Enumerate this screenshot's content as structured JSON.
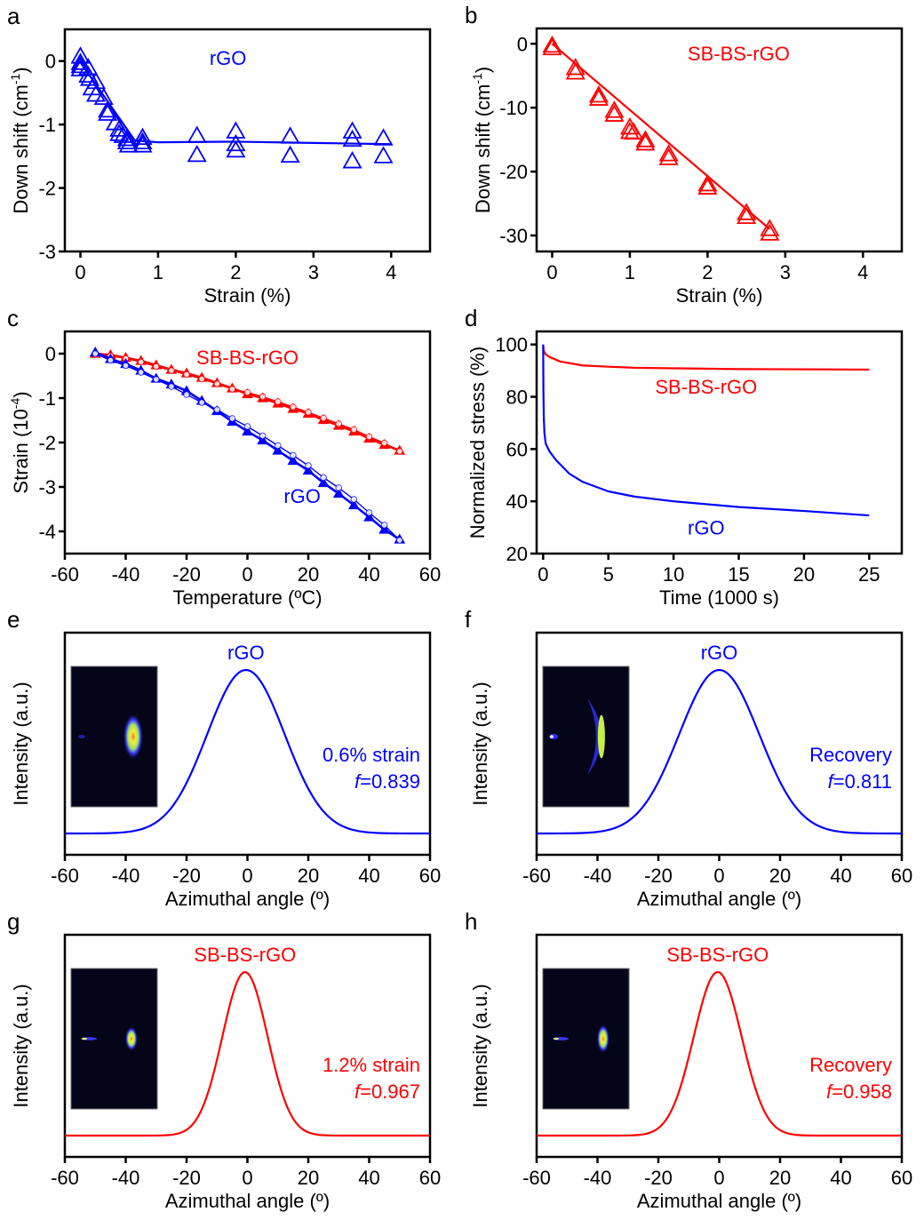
{
  "colors": {
    "rgo": "#0000ff",
    "sbbs": "#ff0000",
    "inset_bg": "#05051a"
  },
  "chart_data": [
    {
      "id": "a",
      "type": "scatter",
      "panel_letter": "a",
      "title": "",
      "xlabel": "Strain (%)",
      "ylabel": "Down shift (cm⁻¹)",
      "ylabel_parts": {
        "main": "Down shift (cm",
        "sup": "-1",
        "end": ")"
      },
      "xlim": [
        -0.2,
        4.5
      ],
      "ylim": [
        -3,
        0.5
      ],
      "xticks": [
        0,
        1,
        2,
        3,
        4
      ],
      "yticks": [
        0,
        -1,
        -2,
        -3
      ],
      "grid": false,
      "annotations": [
        {
          "text": "rGO",
          "color": "#0000ff",
          "at": [
            1.9,
            0.05
          ]
        }
      ],
      "series": [
        {
          "name": "rGO",
          "color": "#0000ff",
          "marker": "open-triangle",
          "x": [
            0,
            0,
            0,
            0,
            0.1,
            0.1,
            0.12,
            0.15,
            0.2,
            0.2,
            0.3,
            0.35,
            0.35,
            0.45,
            0.5,
            0.5,
            0.55,
            0.6,
            0.6,
            0.62,
            0.8,
            0.8,
            0.8,
            1.5,
            1.5,
            2.0,
            2.0,
            2.0,
            2.7,
            2.7,
            3.5,
            3.5,
            3.5,
            3.9,
            3.9
          ],
          "y": [
            0.1,
            0.0,
            -0.05,
            -0.1,
            -0.08,
            -0.2,
            -0.25,
            -0.4,
            -0.3,
            -0.5,
            -0.55,
            -0.75,
            -0.8,
            -0.95,
            -1.05,
            -1.12,
            -1.15,
            -1.2,
            -1.25,
            -1.3,
            -1.18,
            -1.25,
            -1.3,
            -1.15,
            -1.45,
            -1.08,
            -1.28,
            -1.38,
            -1.16,
            -1.46,
            -1.08,
            -1.21,
            -1.55,
            -1.19,
            -1.47
          ]
        },
        {
          "name": "rGO fit",
          "color": "#0000ff",
          "type": "line",
          "x": [
            0,
            0.7,
            1.0,
            2.0,
            3.0,
            4.0
          ],
          "y": [
            -0.02,
            -1.25,
            -1.28,
            -1.27,
            -1.29,
            -1.31
          ]
        }
      ]
    },
    {
      "id": "b",
      "type": "scatter",
      "panel_letter": "b",
      "title": "",
      "xlabel": "Strain (%)",
      "ylabel": "Down shift (cm⁻¹)",
      "ylabel_parts": {
        "main": "Down shift (cm",
        "sup": "-1",
        "end": ")"
      },
      "xlim": [
        -0.2,
        4.5
      ],
      "ylim": [
        -32.5,
        2.4
      ],
      "xticks": [
        0,
        1,
        2,
        3,
        4
      ],
      "yticks": [
        0,
        -10,
        -20,
        -30
      ],
      "grid": false,
      "annotations": [
        {
          "text": "SB-BS-rGO",
          "color": "#ff0000",
          "at": [
            2.4,
            -1.5
          ]
        }
      ],
      "series": [
        {
          "name": "SB-BS-rGO",
          "color": "#ff0000",
          "marker": "open-triangle",
          "x": [
            0,
            0,
            0.3,
            0.3,
            0.6,
            0.6,
            0.8,
            0.8,
            1.0,
            1.0,
            1.05,
            1.2,
            1.2,
            1.5,
            1.5,
            2.0,
            2.0,
            2.5,
            2.5,
            2.8,
            2.8
          ],
          "y": [
            0,
            -0.4,
            -3.5,
            -4.2,
            -7.8,
            -8.3,
            -10.2,
            -10.8,
            -12.8,
            -13.5,
            -13.6,
            -14.8,
            -15.3,
            -17.0,
            -17.6,
            -21.7,
            -22.2,
            -26.2,
            -26.8,
            -28.7,
            -29.4
          ]
        },
        {
          "name": "SB-BS-rGO fit",
          "color": "#ff0000",
          "type": "line",
          "x": [
            0,
            2.8
          ],
          "y": [
            0,
            -29.0
          ]
        }
      ]
    },
    {
      "id": "c",
      "type": "line",
      "panel_letter": "c",
      "title": "",
      "xlabel": "Temperature (ºC)",
      "ylabel": "Strain (10⁻⁴)",
      "ylabel_parts": {
        "main": "Strain (10",
        "sup": "-4",
        "end": ")"
      },
      "xlim": [
        -60,
        60
      ],
      "ylim": [
        -4.5,
        0.5
      ],
      "xticks": [
        -60,
        -40,
        -20,
        0,
        20,
        40,
        60
      ],
      "yticks": [
        0,
        -1,
        -2,
        -3,
        -4
      ],
      "grid": false,
      "annotations": [
        {
          "text": "SB-BS-rGO",
          "color": "#ff0000",
          "at": [
            0,
            -0.08
          ]
        },
        {
          "text": "rGO",
          "color": "#0000ff",
          "at": [
            18,
            -3.2
          ]
        }
      ],
      "x": [
        -50,
        -45,
        -40,
        -35,
        -30,
        -25,
        -20,
        -15,
        -10,
        -5,
        0,
        5,
        10,
        15,
        20,
        25,
        30,
        35,
        40,
        45,
        50
      ],
      "series": [
        {
          "name": "SB-BS-rGO (filled)",
          "color": "#ff0000",
          "marker": "filled-triangle",
          "values": [
            0,
            -0.03,
            -0.09,
            -0.16,
            -0.26,
            -0.36,
            -0.44,
            -0.54,
            -0.66,
            -0.78,
            -0.91,
            -1.0,
            -1.12,
            -1.24,
            -1.35,
            -1.49,
            -1.62,
            -1.75,
            -1.91,
            -2.05,
            -2.18
          ]
        },
        {
          "name": "SB-BS-rGO (open)",
          "color": "#ff0000",
          "marker": "open-circle",
          "values": [
            -0.02,
            -0.05,
            -0.11,
            -0.19,
            -0.29,
            -0.38,
            -0.47,
            -0.57,
            -0.68,
            -0.8,
            -0.87,
            -0.97,
            -1.08,
            -1.2,
            -1.32,
            -1.45,
            -1.58,
            -1.71,
            -1.87,
            -2.01,
            -2.2
          ]
        },
        {
          "name": "rGO (filled)",
          "color": "#0000ff",
          "marker": "filled-triangle",
          "values": [
            0.03,
            -0.12,
            -0.23,
            -0.38,
            -0.56,
            -0.69,
            -0.84,
            -1.06,
            -1.29,
            -1.53,
            -1.75,
            -1.95,
            -2.18,
            -2.41,
            -2.63,
            -2.91,
            -3.15,
            -3.41,
            -3.68,
            -3.96,
            -4.18
          ]
        },
        {
          "name": "rGO (open)",
          "color": "#0000ff",
          "marker": "open-circle",
          "values": [
            0,
            -0.15,
            -0.27,
            -0.42,
            -0.58,
            -0.74,
            -0.92,
            -1.1,
            -1.26,
            -1.46,
            -1.64,
            -1.85,
            -2.07,
            -2.29,
            -2.52,
            -2.79,
            -3.02,
            -3.28,
            -3.58,
            -3.86,
            -4.2
          ]
        }
      ]
    },
    {
      "id": "d",
      "type": "line",
      "panel_letter": "d",
      "title": "",
      "xlabel": "Time (1000 s)",
      "ylabel": "Normalized stress (%)",
      "xlim": [
        -0.5,
        27.5
      ],
      "ylim": [
        20,
        105
      ],
      "xticks": [
        0,
        5,
        10,
        15,
        20,
        25
      ],
      "yticks": [
        20,
        40,
        60,
        80,
        100
      ],
      "grid": false,
      "annotations": [
        {
          "text": "SB-BS-rGO",
          "color": "#ff0000",
          "at": [
            12.5,
            84
          ]
        },
        {
          "text": "rGO",
          "color": "#0000ff",
          "at": [
            12.5,
            30
          ]
        }
      ],
      "series": [
        {
          "name": "SB-BS-rGO",
          "color": "#ff0000",
          "x": [
            0,
            0.05,
            0.2,
            0.5,
            1.3,
            3,
            5,
            7,
            10,
            15,
            20,
            25
          ],
          "y": [
            100,
            97.5,
            96.2,
            95.2,
            93.5,
            92.0,
            91.5,
            91.1,
            90.9,
            90.6,
            90.5,
            90.4
          ]
        },
        {
          "name": "rGO",
          "color": "#0000ff",
          "x": [
            0,
            0.02,
            0.05,
            0.1,
            0.2,
            0.5,
            1,
            2,
            3,
            5,
            7,
            10,
            15,
            20,
            25
          ],
          "y": [
            100,
            82,
            72,
            66,
            62,
            59,
            55.7,
            50.6,
            47.5,
            43.8,
            41.8,
            40.0,
            37.8,
            36.3,
            34.6
          ]
        }
      ]
    },
    {
      "id": "e",
      "type": "line",
      "panel_letter": "e",
      "xlabel": "Azimuthal angle (º)",
      "ylabel": "Intensity (a.u.)",
      "xlim": [
        -60,
        60
      ],
      "xticks": [
        -60,
        -40,
        -20,
        0,
        20,
        40,
        60
      ],
      "material": "rGO",
      "color": "#0000ff",
      "annotations": {
        "title": "rGO",
        "condition": "0.6% strain",
        "f_label": "f",
        "f_value": "=0.839"
      },
      "peak": {
        "center": -0.5,
        "fwhm": 30
      },
      "inset": {
        "arc": "wide",
        "arc_x": 0.72,
        "arc_height": 0.32,
        "beam_stop": "small"
      }
    },
    {
      "id": "f",
      "type": "line",
      "panel_letter": "f",
      "xlabel": "Azimuthal angle (º)",
      "ylabel": "Intensity (a.u.)",
      "xlim": [
        -60,
        60
      ],
      "xticks": [
        -60,
        -40,
        -20,
        0,
        20,
        40,
        60
      ],
      "material": "rGO",
      "color": "#0000ff",
      "annotations": {
        "title": "rGO",
        "condition": "Recovery",
        "f_label": "f",
        "f_value": "=0.811"
      },
      "peak": {
        "center": 0,
        "fwhm": 31
      },
      "inset": {
        "arc": "crescent",
        "arc_x": 0.7,
        "arc_height": 0.55,
        "beam_stop": "bright"
      }
    },
    {
      "id": "g",
      "type": "line",
      "panel_letter": "g",
      "xlabel": "Azimuthal angle (º)",
      "ylabel": "Intensity (a.u.)",
      "xlim": [
        -60,
        60
      ],
      "xticks": [
        -60,
        -40,
        -20,
        0,
        20,
        40,
        60
      ],
      "material": "SB-BS-rGO",
      "color": "#ff0000",
      "annotations": {
        "title": "SB-BS-rGO",
        "condition": "1.2% strain",
        "f_label": "f",
        "f_value": "=0.967"
      },
      "peak": {
        "center": -0.8,
        "fwhm": 17.5
      },
      "inset": {
        "arc": "spot",
        "arc_x": 0.7,
        "arc_height": 0.17,
        "beam_stop": "streak"
      }
    },
    {
      "id": "h",
      "type": "line",
      "panel_letter": "h",
      "xlabel": "Azimuthal angle (º)",
      "ylabel": "Intensity (a.u.)",
      "xlim": [
        -60,
        60
      ],
      "xticks": [
        -60,
        -40,
        -20,
        0,
        20,
        40,
        60
      ],
      "material": "SB-BS-rGO",
      "color": "#ff0000",
      "annotations": {
        "title": "SB-BS-rGO",
        "condition": "Recovery",
        "f_label": "f",
        "f_value": "=0.958"
      },
      "peak": {
        "center": -0.5,
        "fwhm": 18.5
      },
      "inset": {
        "arc": "spot",
        "arc_x": 0.7,
        "arc_height": 0.2,
        "beam_stop": "streak"
      }
    }
  ]
}
